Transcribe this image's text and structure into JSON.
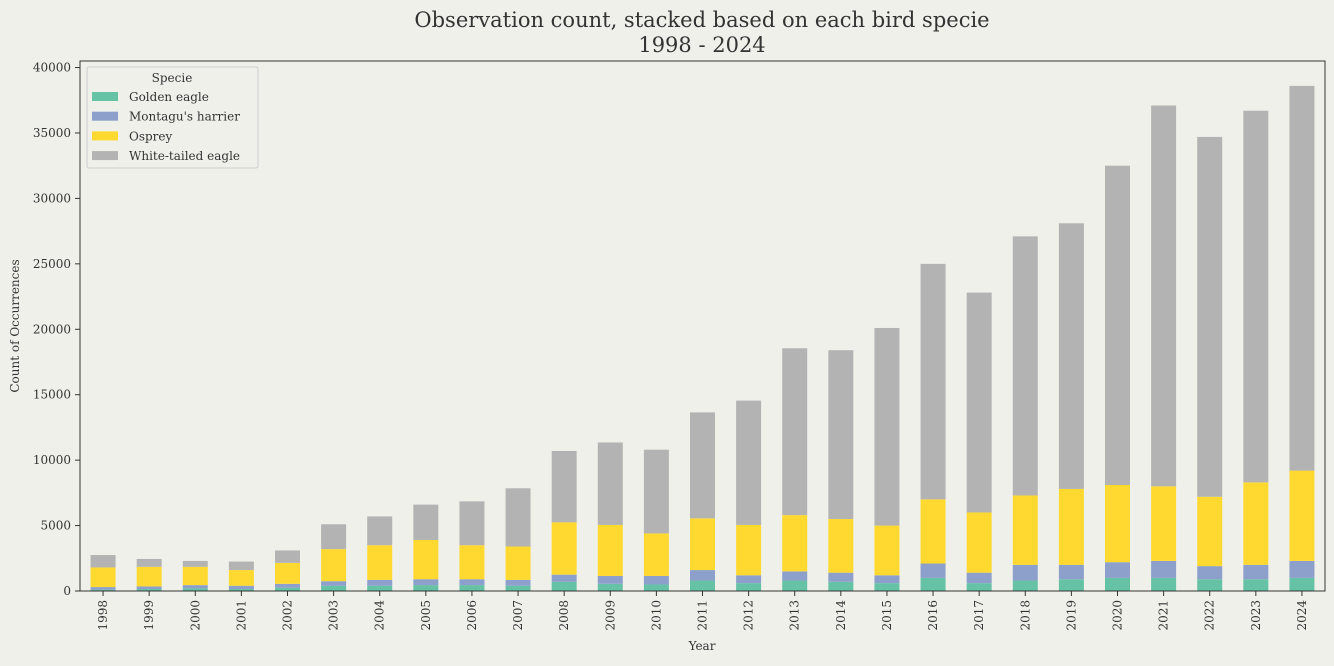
{
  "chart_data": {
    "type": "bar",
    "stacked": true,
    "title_line1": "Observation count, stacked based on each bird specie",
    "title_line2": "1998 - 2024",
    "xlabel": "Year",
    "ylabel": "Count of Occurrences",
    "ylim": [
      0,
      40500
    ],
    "yticks": [
      0,
      5000,
      10000,
      15000,
      20000,
      25000,
      30000,
      35000,
      40000
    ],
    "grid": false,
    "legend_title": "Specie",
    "legend_position": "top-left",
    "categories": [
      "1998",
      "1999",
      "2000",
      "2001",
      "2002",
      "2003",
      "2004",
      "2005",
      "2006",
      "2007",
      "2008",
      "2009",
      "2010",
      "2011",
      "2012",
      "2013",
      "2014",
      "2015",
      "2016",
      "2017",
      "2018",
      "2019",
      "2020",
      "2021",
      "2022",
      "2023",
      "2024"
    ],
    "series": [
      {
        "name": "Golden eagle",
        "color": "#66c2a5",
        "values": [
          100,
          150,
          200,
          150,
          250,
          400,
          400,
          450,
          450,
          400,
          700,
          550,
          500,
          800,
          600,
          800,
          700,
          600,
          1000,
          600,
          800,
          900,
          1000,
          1000,
          900,
          900,
          1000
        ]
      },
      {
        "name": "Montagu's harrier",
        "color": "#8da0cb",
        "values": [
          200,
          200,
          250,
          250,
          300,
          350,
          450,
          450,
          450,
          450,
          550,
          600,
          650,
          800,
          600,
          700,
          700,
          600,
          1100,
          800,
          1200,
          1100,
          1200,
          1300,
          1000,
          1100,
          1300
        ]
      },
      {
        "name": "Osprey",
        "color": "#ffd92f",
        "values": [
          1500,
          1500,
          1400,
          1200,
          1600,
          2450,
          2650,
          3000,
          2600,
          2550,
          4000,
          3900,
          3250,
          3950,
          3850,
          4300,
          4100,
          3800,
          4900,
          4600,
          5300,
          5800,
          5900,
          5700,
          5300,
          6300,
          6900
        ]
      },
      {
        "name": "White-tailed eagle",
        "color": "#b3b3b3",
        "values": [
          950,
          600,
          450,
          650,
          950,
          1900,
          2200,
          2700,
          3350,
          4450,
          5450,
          6300,
          6400,
          8100,
          9500,
          12750,
          12900,
          15100,
          18000,
          16800,
          19800,
          20300,
          24400,
          29100,
          27500,
          28400,
          29400
        ]
      }
    ]
  }
}
